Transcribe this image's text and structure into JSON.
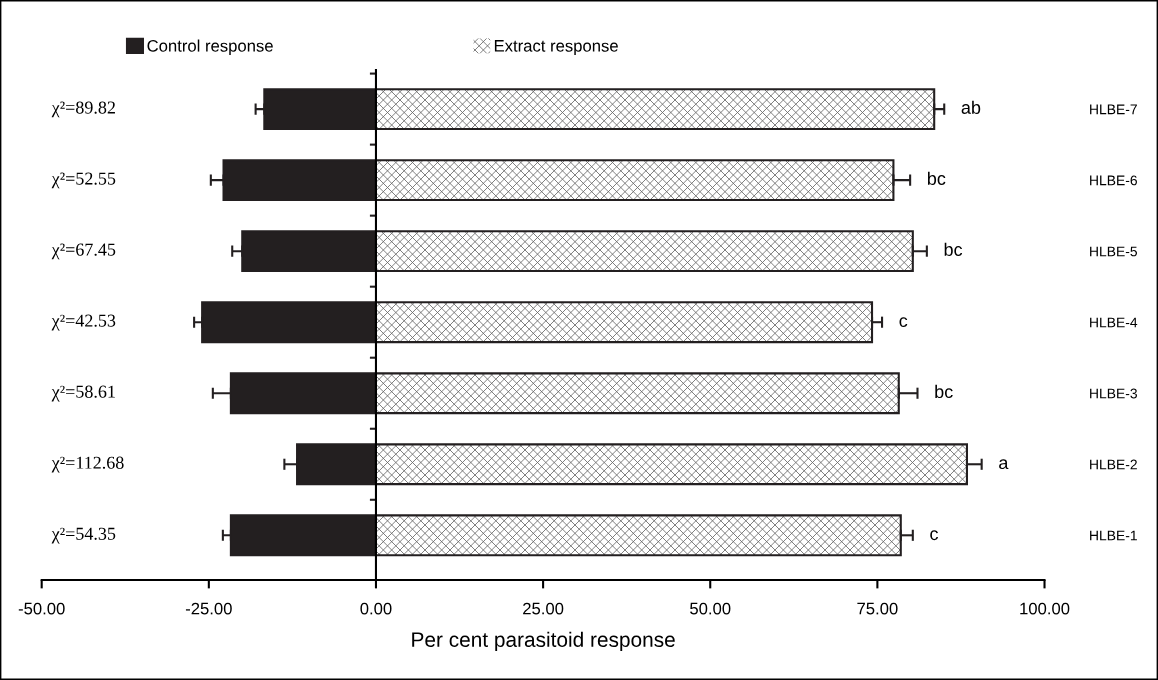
{
  "chart_data": {
    "type": "bar",
    "orientation": "horizontal",
    "stacked": true,
    "xlabel": "Per cent parasitoid response",
    "categories": [
      "HLBE-7",
      "HLBE-6",
      "HLBE-5",
      "HLBE-4",
      "HLBE-3",
      "HLBE-2",
      "HLBE-1"
    ],
    "series": [
      {
        "name": "Control response",
        "color": "#231f20",
        "values": [
          -16.7,
          -22.8,
          -20.0,
          -26.0,
          -21.7,
          -11.8,
          -21.7
        ],
        "errors": [
          [
            -18.0,
            -16.7
          ],
          [
            -24.7,
            -22.8
          ],
          [
            -21.5,
            -20.0
          ],
          [
            -27.2,
            -26.0
          ],
          [
            -24.4,
            -21.7
          ],
          [
            -13.7,
            -11.8
          ],
          [
            -22.9,
            -21.7
          ]
        ]
      },
      {
        "name": "Extract response",
        "color": "#ffffff",
        "values": [
          83.5,
          77.4,
          80.3,
          74.2,
          78.2,
          88.4,
          78.5
        ],
        "errors": [
          [
            83.5,
            85.0
          ],
          [
            77.4,
            79.9
          ],
          [
            80.3,
            82.4
          ],
          [
            74.2,
            75.7
          ],
          [
            78.2,
            81.0
          ],
          [
            88.4,
            90.6
          ],
          [
            78.5,
            80.3
          ]
        ]
      }
    ],
    "xlim": [
      -50,
      100
    ],
    "xticks": [
      {
        "value": -50,
        "label": "-50.00"
      },
      {
        "value": -25,
        "label": "-25.00"
      },
      {
        "value": 0,
        "label": "0.00"
      },
      {
        "value": 25,
        "label": "25.00"
      },
      {
        "value": 50,
        "label": "50.00"
      },
      {
        "value": 75,
        "label": "75.00"
      },
      {
        "value": 100,
        "label": "100.00"
      }
    ],
    "annotations": [
      "χ²=89.82",
      "χ²=52.55",
      "χ²=67.45",
      "χ²=42.53",
      "χ²=58.61",
      "χ²=112.68",
      "χ²=54.35",
      "ab",
      "bc",
      "bc",
      "c",
      "bc",
      "a",
      "c"
    ],
    "legend": "top"
  }
}
